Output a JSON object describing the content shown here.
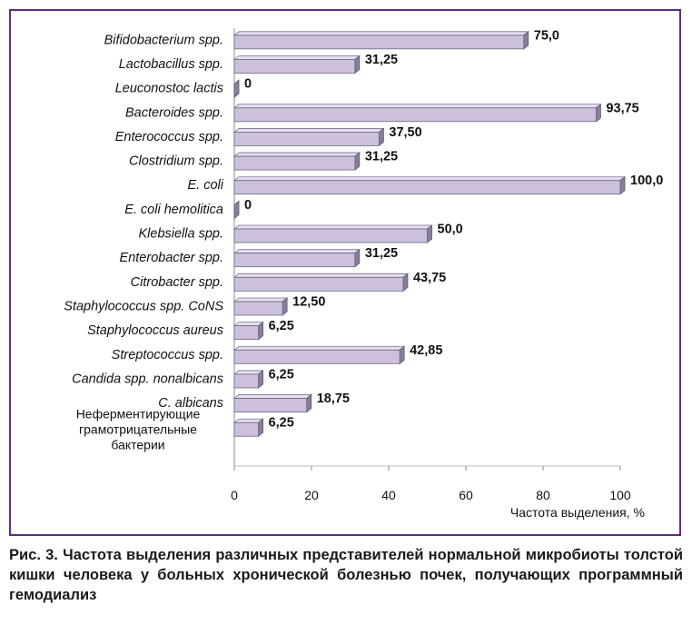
{
  "chart_data": {
    "type": "bar",
    "orientation": "horizontal",
    "categories": [
      "Bifidobacterium spp.",
      "Lactobacillus spp.",
      "Leuconostoc lactis",
      "Bacteroides spp.",
      "Enterococcus spp.",
      "Clostridium spp.",
      "E. coli",
      "E. coli hemolitica",
      "Klebsiella spp.",
      "Enterobacter spp.",
      "Citrobacter spp.",
      "Staphylococcus spp. CoNS",
      "Staphylococcus aureus",
      "Streptococcus spp.",
      "Candida spp. nonalbicans",
      "C. albicans",
      "Неферментирующие грамотрицательные бактерии"
    ],
    "category_lines": [
      [
        "Bifidobacterium spp."
      ],
      [
        "Lactobacillus spp."
      ],
      [
        "Leuconostoc lactis"
      ],
      [
        "Bacteroides spp."
      ],
      [
        "Enterococcus spp."
      ],
      [
        "Clostridium spp."
      ],
      [
        "E. coli"
      ],
      [
        "E. coli hemolitica"
      ],
      [
        "Klebsiella spp."
      ],
      [
        "Enterobacter spp."
      ],
      [
        "Citrobacter spp."
      ],
      [
        "Staphylococcus spp. CoNS"
      ],
      [
        "Staphylococcus aureus"
      ],
      [
        "Streptococcus spp."
      ],
      [
        "Candida spp. nonalbicans"
      ],
      [
        "C. albicans"
      ],
      [
        "Неферментирующие",
        "грамотрицательные",
        "бактерии"
      ]
    ],
    "values": [
      75.0,
      31.25,
      0,
      93.75,
      37.5,
      31.25,
      100.0,
      0,
      50.0,
      31.25,
      43.75,
      12.5,
      6.25,
      42.85,
      6.25,
      18.75,
      6.25
    ],
    "value_labels": [
      "75,0",
      "31,25",
      "0",
      "93,75",
      "37,50",
      "31,25",
      "100,0",
      "0",
      "50,0",
      "31,25",
      "43,75",
      "12,50",
      "6,25",
      "42,85",
      "6,25",
      "18,75",
      "6,25"
    ],
    "xlabel": "Частота выделения, %",
    "ylabel": "",
    "xlim": [
      0,
      100
    ],
    "xticks": [
      0,
      20,
      40,
      60,
      80,
      100
    ],
    "grid": false,
    "legend": "none",
    "colors": {
      "bar_face": "#ccc0da",
      "bar_top": "#e6dff0",
      "bar_side": "#8a7f99",
      "frame": "#5b2d82"
    }
  },
  "caption": "Рис. 3. Частота выделения различных представителей нормальной микробиоты толстой кишки человека у больных хронической болезнью почек, получающих программный гемодиализ"
}
